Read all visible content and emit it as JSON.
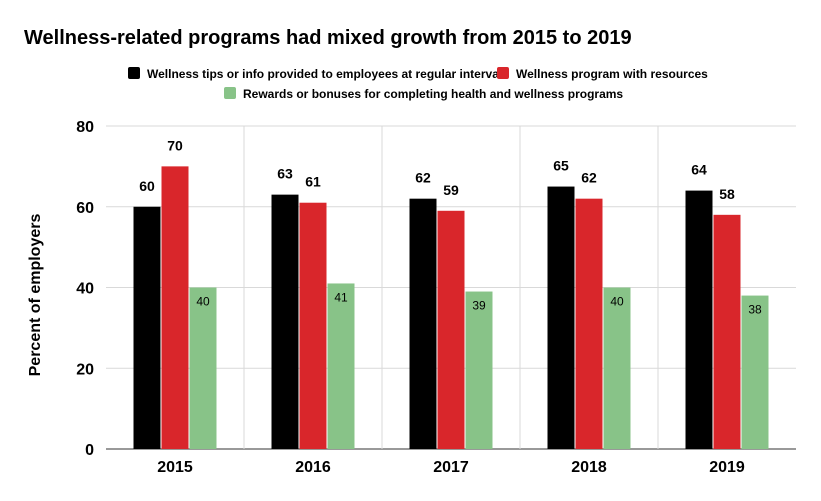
{
  "chart_data": {
    "type": "bar",
    "title": "Wellness-related programs had mixed growth from 2015 to 2019",
    "xlabel": "",
    "ylabel": "Percent of employers",
    "categories": [
      "2015",
      "2016",
      "2017",
      "2018",
      "2019"
    ],
    "ylim": [
      0,
      80
    ],
    "yticks": [
      0,
      20,
      40,
      60,
      80
    ],
    "grid": true,
    "legend_position": "top",
    "series": [
      {
        "name": "Wellness tips or info provided to employees at regular intervals",
        "values": [
          60,
          63,
          62,
          65,
          64
        ],
        "color": "#000000"
      },
      {
        "name": "Wellness program with resources",
        "values": [
          70,
          61,
          59,
          62,
          58
        ],
        "color": "#d9262b"
      },
      {
        "name": "Rewards or bonuses for completing health and wellness programs",
        "values": [
          40,
          41,
          39,
          40,
          38
        ],
        "color": "#88c388"
      }
    ]
  }
}
